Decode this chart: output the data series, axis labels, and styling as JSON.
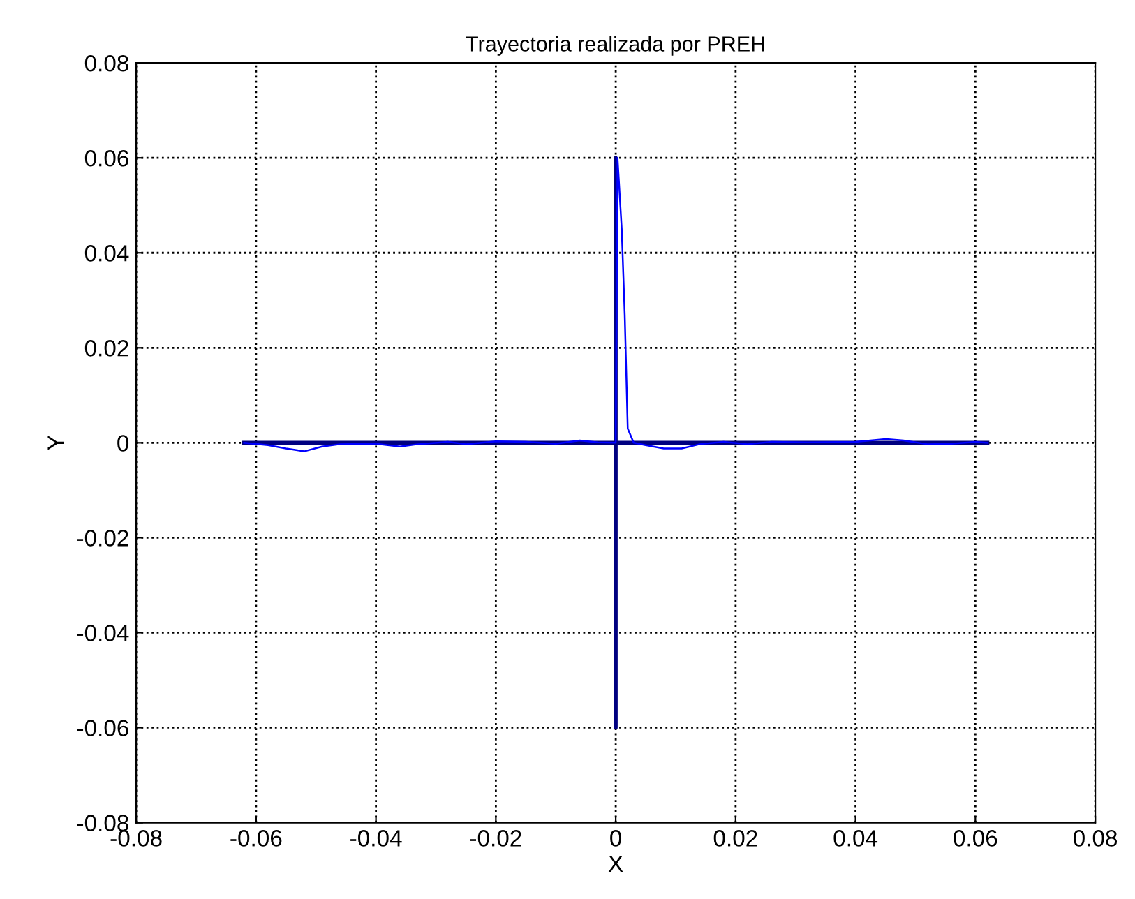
{
  "chart_data": {
    "type": "line",
    "title": "Trayectoria realizada por PREH",
    "xlabel": "X",
    "ylabel": "Y",
    "xlim": [
      -0.08,
      0.08
    ],
    "ylim": [
      -0.08,
      0.08
    ],
    "xticks": [
      -0.08,
      -0.06,
      -0.04,
      -0.02,
      0,
      0.02,
      0.04,
      0.06,
      0.08
    ],
    "yticks": [
      -0.08,
      -0.06,
      -0.04,
      -0.02,
      0,
      0.02,
      0.04,
      0.06,
      0.08
    ],
    "grid": true,
    "legend": false,
    "line_style": "solid",
    "marker": "none",
    "series": [
      {
        "color": "#000080",
        "x": [
          -0.062,
          0,
          0,
          0,
          0,
          0.062
        ],
        "values": [
          0,
          0,
          0.06,
          -0.06,
          0,
          0
        ]
      },
      {
        "color": "#0000ff",
        "x": [
          -0.062,
          -0.058,
          -0.055,
          -0.052,
          -0.049,
          -0.046,
          -0.04,
          -0.036,
          -0.033,
          -0.028,
          -0.025,
          -0.02,
          -0.015,
          -0.01,
          -0.006,
          -0.003,
          0,
          0.0003,
          0.001,
          0.0015,
          0.002,
          0.003,
          0.005,
          0.008,
          0.011,
          0.014,
          0.018,
          0.022,
          0.026,
          0.032,
          0.04,
          0.045,
          0.048,
          0.052,
          0.056,
          0.06,
          0.062
        ],
        "values": [
          0,
          -0.0005,
          -0.0012,
          -0.0018,
          -0.0008,
          -0.0003,
          -0.0002,
          -0.0008,
          -0.0003,
          0.0002,
          -0.0003,
          0.0003,
          0.0002,
          -0.0002,
          0.0005,
          0.0001,
          0,
          0.06,
          0.045,
          0.027,
          0.003,
          0,
          -0.0005,
          -0.0012,
          -0.0012,
          -0.0003,
          0.0002,
          -0.0003,
          0.0002,
          0.0001,
          0.0002,
          0.0008,
          0.0005,
          -0.0003,
          -0.0002,
          0.0002,
          0
        ]
      }
    ]
  }
}
